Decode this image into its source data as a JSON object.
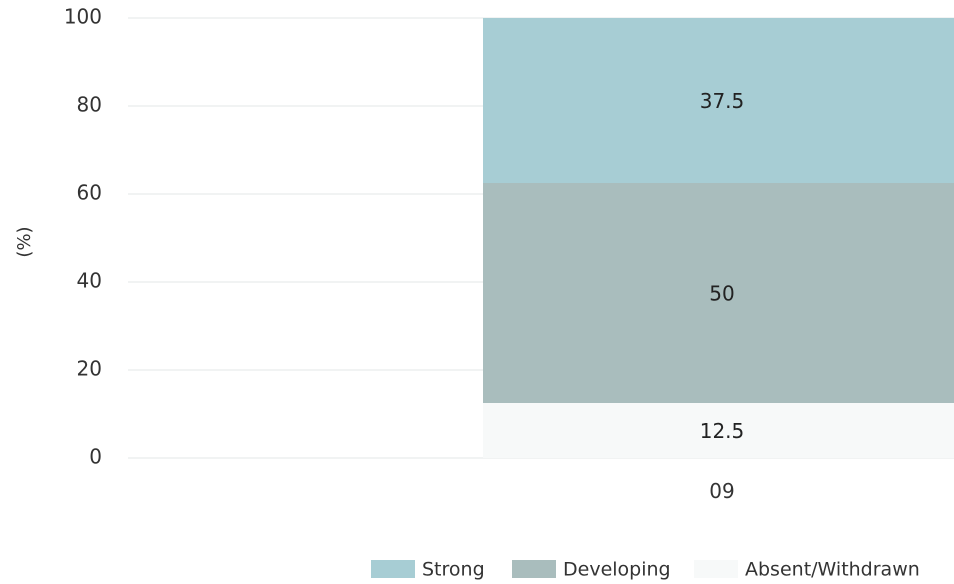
{
  "chart_data": {
    "type": "bar",
    "stacked": true,
    "categories": [
      "09"
    ],
    "series": [
      {
        "name": "Absent/Withdrawn",
        "values": [
          12.5
        ],
        "color": "#f7f9f9"
      },
      {
        "name": "Developing",
        "values": [
          50
        ],
        "color": "#a9bdbd"
      },
      {
        "name": "Strong",
        "values": [
          37.5
        ],
        "color": "#a7cdd4"
      }
    ],
    "data_labels": [
      "12.5",
      "50",
      "37.5"
    ],
    "ylabel": "(%)",
    "ylim": [
      0,
      100
    ],
    "yticks": [
      0,
      20,
      40,
      60,
      80,
      100
    ],
    "grid": true,
    "legend": {
      "position": "bottom-right",
      "order": [
        "Strong",
        "Developing",
        "Absent/Withdrawn"
      ]
    }
  }
}
